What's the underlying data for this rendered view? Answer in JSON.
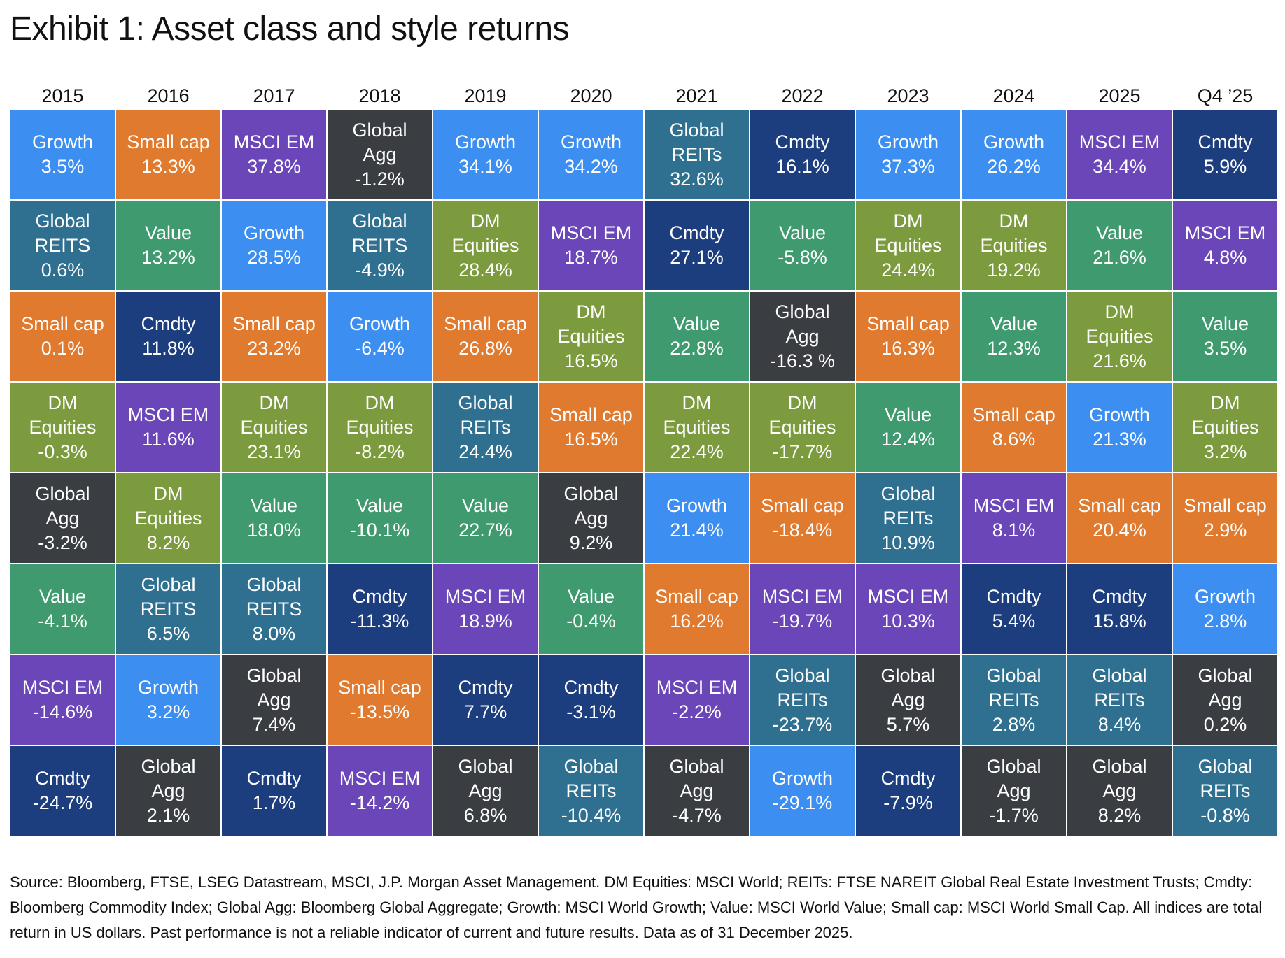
{
  "title": "Exhibit 1: Asset class and style returns",
  "footnote": "Source: Bloomberg, FTSE, LSEG Datastream, MSCI, J.P. Morgan Asset Management. DM Equities: MSCI World; REITs: FTSE NAREIT Global Real Estate Investment Trusts; Cmdty: Bloomberg Commodity Index; Global Agg: Bloomberg Global Aggregate; Growth: MSCI World Growth; Value: MSCI World Value; Small cap: MSCI World Small Cap. All indices are total return in US dollars. Past performance is not a reliable indicator of current and future results. Data as of 31 December 2025.",
  "colors": {
    "Growth": "#3c8ff0",
    "Small cap": "#e07a2e",
    "MSCI EM": "#6a46b8",
    "Global Agg": "#3a3d42",
    "Global REITS": "#2f6f8f",
    "Global REITs": "#2f6f8f",
    "Cmdty": "#1c3d7e",
    "Value": "#3f9b6f",
    "DM Equities": "#7c9a3e"
  },
  "chart_data": {
    "type": "table",
    "title": "Exhibit 1: Asset class and style returns",
    "columns": [
      {
        "year": "2015",
        "cells": [
          {
            "label": "Growth",
            "value": "3.5%"
          },
          {
            "label": "Global REITS",
            "value": "0.6%"
          },
          {
            "label": "Small cap",
            "value": "0.1%"
          },
          {
            "label": "DM Equities",
            "value": "-0.3%"
          },
          {
            "label": "Global Agg",
            "value": "-3.2%"
          },
          {
            "label": "Value",
            "value": "-4.1%"
          },
          {
            "label": "MSCI EM",
            "value": "-14.6%"
          },
          {
            "label": "Cmdty",
            "value": "-24.7%"
          }
        ]
      },
      {
        "year": "2016",
        "cells": [
          {
            "label": "Small cap",
            "value": "13.3%"
          },
          {
            "label": "Value",
            "value": "13.2%"
          },
          {
            "label": "Cmdty",
            "value": "11.8%"
          },
          {
            "label": "MSCI EM",
            "value": "11.6%"
          },
          {
            "label": "DM Equities",
            "value": "8.2%"
          },
          {
            "label": "Global REITS",
            "value": "6.5%"
          },
          {
            "label": "Growth",
            "value": "3.2%"
          },
          {
            "label": "Global Agg",
            "value": "2.1%"
          }
        ]
      },
      {
        "year": "2017",
        "cells": [
          {
            "label": "MSCI EM",
            "value": "37.8%"
          },
          {
            "label": "Growth",
            "value": "28.5%"
          },
          {
            "label": "Small cap",
            "value": "23.2%"
          },
          {
            "label": "DM Equities",
            "value": "23.1%"
          },
          {
            "label": "Value",
            "value": "18.0%"
          },
          {
            "label": "Global REITS",
            "value": "8.0%"
          },
          {
            "label": "Global Agg",
            "value": "7.4%"
          },
          {
            "label": "Cmdty",
            "value": "1.7%"
          }
        ]
      },
      {
        "year": "2018",
        "cells": [
          {
            "label": "Global Agg",
            "value": "-1.2%"
          },
          {
            "label": "Global REITS",
            "value": "-4.9%"
          },
          {
            "label": "Growth",
            "value": "-6.4%"
          },
          {
            "label": "DM Equities",
            "value": "-8.2%"
          },
          {
            "label": "Value",
            "value": "-10.1%"
          },
          {
            "label": "Cmdty",
            "value": "-11.3%"
          },
          {
            "label": "Small cap",
            "value": "-13.5%"
          },
          {
            "label": "MSCI EM",
            "value": "-14.2%"
          }
        ]
      },
      {
        "year": "2019",
        "cells": [
          {
            "label": "Growth",
            "value": "34.1%"
          },
          {
            "label": "DM Equities",
            "value": "28.4%"
          },
          {
            "label": "Small cap",
            "value": "26.8%"
          },
          {
            "label": "Global REITs",
            "value": "24.4%"
          },
          {
            "label": "Value",
            "value": "22.7%"
          },
          {
            "label": "MSCI EM",
            "value": "18.9%"
          },
          {
            "label": "Cmdty",
            "value": "7.7%"
          },
          {
            "label": "Global Agg",
            "value": "6.8%"
          }
        ]
      },
      {
        "year": "2020",
        "cells": [
          {
            "label": "Growth",
            "value": "34.2%"
          },
          {
            "label": "MSCI EM",
            "value": "18.7%"
          },
          {
            "label": "DM Equities",
            "value": "16.5%"
          },
          {
            "label": "Small cap",
            "value": "16.5%"
          },
          {
            "label": "Global Agg",
            "value": "9.2%"
          },
          {
            "label": "Value",
            "value": "-0.4%"
          },
          {
            "label": "Cmdty",
            "value": "-3.1%"
          },
          {
            "label": "Global REITs",
            "value": "-10.4%"
          }
        ]
      },
      {
        "year": "2021",
        "cells": [
          {
            "label": "Global REITs",
            "value": "32.6%"
          },
          {
            "label": "Cmdty",
            "value": "27.1%"
          },
          {
            "label": "Value",
            "value": "22.8%"
          },
          {
            "label": "DM Equities",
            "value": "22.4%"
          },
          {
            "label": "Growth",
            "value": "21.4%"
          },
          {
            "label": "Small cap",
            "value": "16.2%"
          },
          {
            "label": "MSCI EM",
            "value": "-2.2%"
          },
          {
            "label": "Global Agg",
            "value": "-4.7%"
          }
        ]
      },
      {
        "year": "2022",
        "cells": [
          {
            "label": "Cmdty",
            "value": "16.1%"
          },
          {
            "label": "Value",
            "value": "-5.8%"
          },
          {
            "label": "Global Agg",
            "value": "-16.3 %"
          },
          {
            "label": "DM Equities",
            "value": "-17.7%"
          },
          {
            "label": "Small cap",
            "value": "-18.4%"
          },
          {
            "label": "MSCI EM",
            "value": "-19.7%"
          },
          {
            "label": "Global REITs",
            "value": "-23.7%"
          },
          {
            "label": "Growth",
            "value": "-29.1%"
          }
        ]
      },
      {
        "year": "2023",
        "cells": [
          {
            "label": "Growth",
            "value": "37.3%"
          },
          {
            "label": "DM Equities",
            "value": "24.4%"
          },
          {
            "label": "Small cap",
            "value": "16.3%"
          },
          {
            "label": "Value",
            "value": "12.4%"
          },
          {
            "label": "Global REITs",
            "value": "10.9%"
          },
          {
            "label": "MSCI EM",
            "value": "10.3%"
          },
          {
            "label": "Global Agg",
            "value": "5.7%"
          },
          {
            "label": "Cmdty",
            "value": "-7.9%"
          }
        ]
      },
      {
        "year": "2024",
        "cells": [
          {
            "label": "Growth",
            "value": "26.2%"
          },
          {
            "label": "DM Equities",
            "value": "19.2%"
          },
          {
            "label": "Value",
            "value": "12.3%"
          },
          {
            "label": "Small cap",
            "value": "8.6%"
          },
          {
            "label": "MSCI EM",
            "value": "8.1%"
          },
          {
            "label": "Cmdty",
            "value": "5.4%"
          },
          {
            "label": "Global REITs",
            "value": "2.8%"
          },
          {
            "label": "Global Agg",
            "value": "-1.7%"
          }
        ]
      },
      {
        "year": "2025",
        "cells": [
          {
            "label": "MSCI EM",
            "value": "34.4%"
          },
          {
            "label": "Value",
            "value": "21.6%"
          },
          {
            "label": "DM Equities",
            "value": "21.6%"
          },
          {
            "label": "Growth",
            "value": "21.3%"
          },
          {
            "label": "Small cap",
            "value": "20.4%"
          },
          {
            "label": "Cmdty",
            "value": "15.8%"
          },
          {
            "label": "Global REITs",
            "value": "8.4%"
          },
          {
            "label": "Global Agg",
            "value": "8.2%"
          }
        ]
      },
      {
        "year": "Q4 ’25",
        "cells": [
          {
            "label": "Cmdty",
            "value": "5.9%"
          },
          {
            "label": "MSCI EM",
            "value": "4.8%"
          },
          {
            "label": "Value",
            "value": "3.5%"
          },
          {
            "label": "DM Equities",
            "value": "3.2%"
          },
          {
            "label": "Small cap",
            "value": "2.9%"
          },
          {
            "label": "Growth",
            "value": "2.8%"
          },
          {
            "label": "Global Agg",
            "value": "0.2%"
          },
          {
            "label": "Global REITs",
            "value": "-0.8%"
          }
        ]
      }
    ]
  }
}
